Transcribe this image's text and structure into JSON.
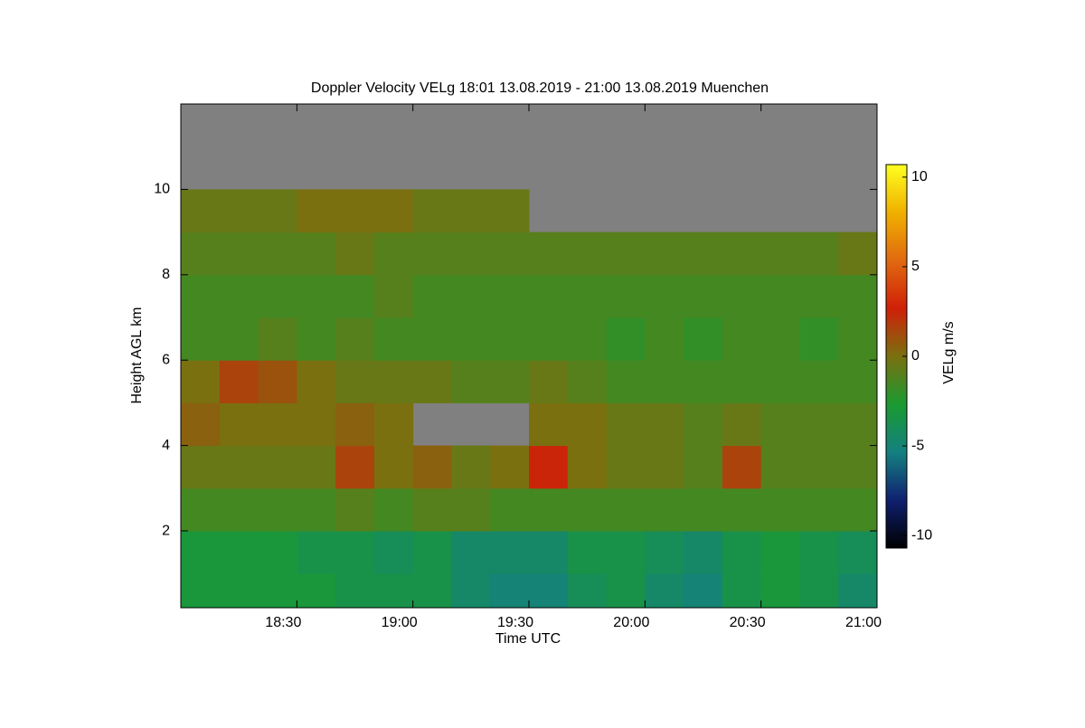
{
  "chart_data": {
    "type": "heatmap",
    "title": "Doppler Velocity VELg   18:01 13.08.2019 - 21:00 13.08.2019 Muenchen",
    "x_label": "Time UTC",
    "y_label": "Height AGL km",
    "colorbar_label": "VELg m/s",
    "xlim": [
      1080,
      1260
    ],
    "xticks": [
      {
        "value": 1110,
        "label": "18:30"
      },
      {
        "value": 1140,
        "label": "19:00"
      },
      {
        "value": 1170,
        "label": "19:30"
      },
      {
        "value": 1200,
        "label": "20:00"
      },
      {
        "value": 1230,
        "label": "20:30"
      },
      {
        "value": 1260,
        "label": "21:00"
      }
    ],
    "ylim": [
      0.2,
      12
    ],
    "yticks": [
      2,
      4,
      6,
      8,
      10
    ],
    "zlim": [
      -10.7,
      10.7
    ],
    "zticks": [
      -10,
      -5,
      0,
      5,
      10
    ],
    "colormap": [
      "#000000",
      "#102070",
      "#148080",
      "#1a9a30",
      "#7a7010",
      "#d02008",
      "#e06a10",
      "#f0b000",
      "#ffff20"
    ],
    "missing_color": "#808080",
    "x_edges": [
      1080,
      1090,
      1100,
      1110,
      1120,
      1130,
      1140,
      1150,
      1160,
      1170,
      1180,
      1190,
      1200,
      1210,
      1220,
      1230,
      1240,
      1250,
      1260
    ],
    "y_edges": [
      0.2,
      1,
      2,
      3,
      4,
      5,
      6,
      7,
      8,
      9,
      10,
      11,
      12
    ],
    "values": [
      [
        -3,
        -3,
        -3,
        -3,
        -3.5,
        -3.5,
        -3.5,
        -4.5,
        -5,
        -5,
        -4,
        -3.5,
        -4.5,
        -5,
        -3.5,
        -3,
        -3.5,
        -4.5
      ],
      [
        -3,
        -3,
        -3,
        -3.5,
        -3.5,
        -4,
        -3.5,
        -4.5,
        -4.5,
        -4.5,
        -3.5,
        -3.5,
        -4,
        -4.5,
        -3.5,
        -3,
        -3.5,
        -4
      ],
      [
        -1.5,
        -1.5,
        -1.5,
        -1.5,
        -1,
        -1.5,
        -1,
        -1,
        -1.5,
        -1.5,
        -1.5,
        -1.5,
        -1.5,
        -1.5,
        -1.5,
        -1.5,
        -1.5,
        -1.5
      ],
      [
        -0.5,
        -0.5,
        -0.5,
        -0.5,
        1.5,
        0,
        0.5,
        -0.5,
        0,
        2.5,
        0,
        -0.5,
        -0.5,
        -1,
        1.5,
        -1,
        -1,
        -1
      ],
      [
        0.5,
        0,
        0,
        0,
        0.5,
        0,
        null,
        null,
        null,
        0,
        0,
        -0.5,
        -0.5,
        -1,
        -0.5,
        -1,
        -1,
        -1
      ],
      [
        0,
        1.5,
        1,
        0,
        -0.5,
        -0.5,
        -0.5,
        -1,
        -1,
        -0.5,
        -1,
        -1.5,
        -1.5,
        -1.5,
        -1.5,
        -1.5,
        -1.5,
        -1.5
      ],
      [
        -1.5,
        -1.5,
        -1,
        -1.5,
        -1,
        -1.5,
        -1.5,
        -1.5,
        -1.5,
        -1.5,
        -1.5,
        -2,
        -1.5,
        -2,
        -1.5,
        -1.5,
        -2,
        -1.5
      ],
      [
        -1.5,
        -1.5,
        -1.5,
        -1.5,
        -1.5,
        -1,
        -1.5,
        -1.5,
        -1.5,
        -1.5,
        -1.5,
        -1.5,
        -1.5,
        -1.5,
        -1.5,
        -1.5,
        -1.5,
        -1.5
      ],
      [
        -1,
        -1,
        -1,
        -1,
        -0.5,
        -1,
        -1,
        -1,
        -1,
        -1,
        -1,
        -1,
        -1,
        -1,
        -1,
        -1,
        -1,
        -0.5
      ],
      [
        -0.5,
        -0.5,
        -0.5,
        0,
        0,
        0,
        -0.5,
        -0.5,
        -0.5,
        null,
        null,
        null,
        null,
        null,
        null,
        null,
        null,
        null
      ],
      [
        null,
        null,
        null,
        null,
        null,
        null,
        null,
        null,
        null,
        null,
        null,
        null,
        null,
        null,
        null,
        null,
        null,
        null
      ],
      [
        null,
        null,
        null,
        null,
        null,
        null,
        null,
        null,
        null,
        null,
        null,
        null,
        null,
        null,
        null,
        null,
        null,
        null
      ]
    ]
  }
}
